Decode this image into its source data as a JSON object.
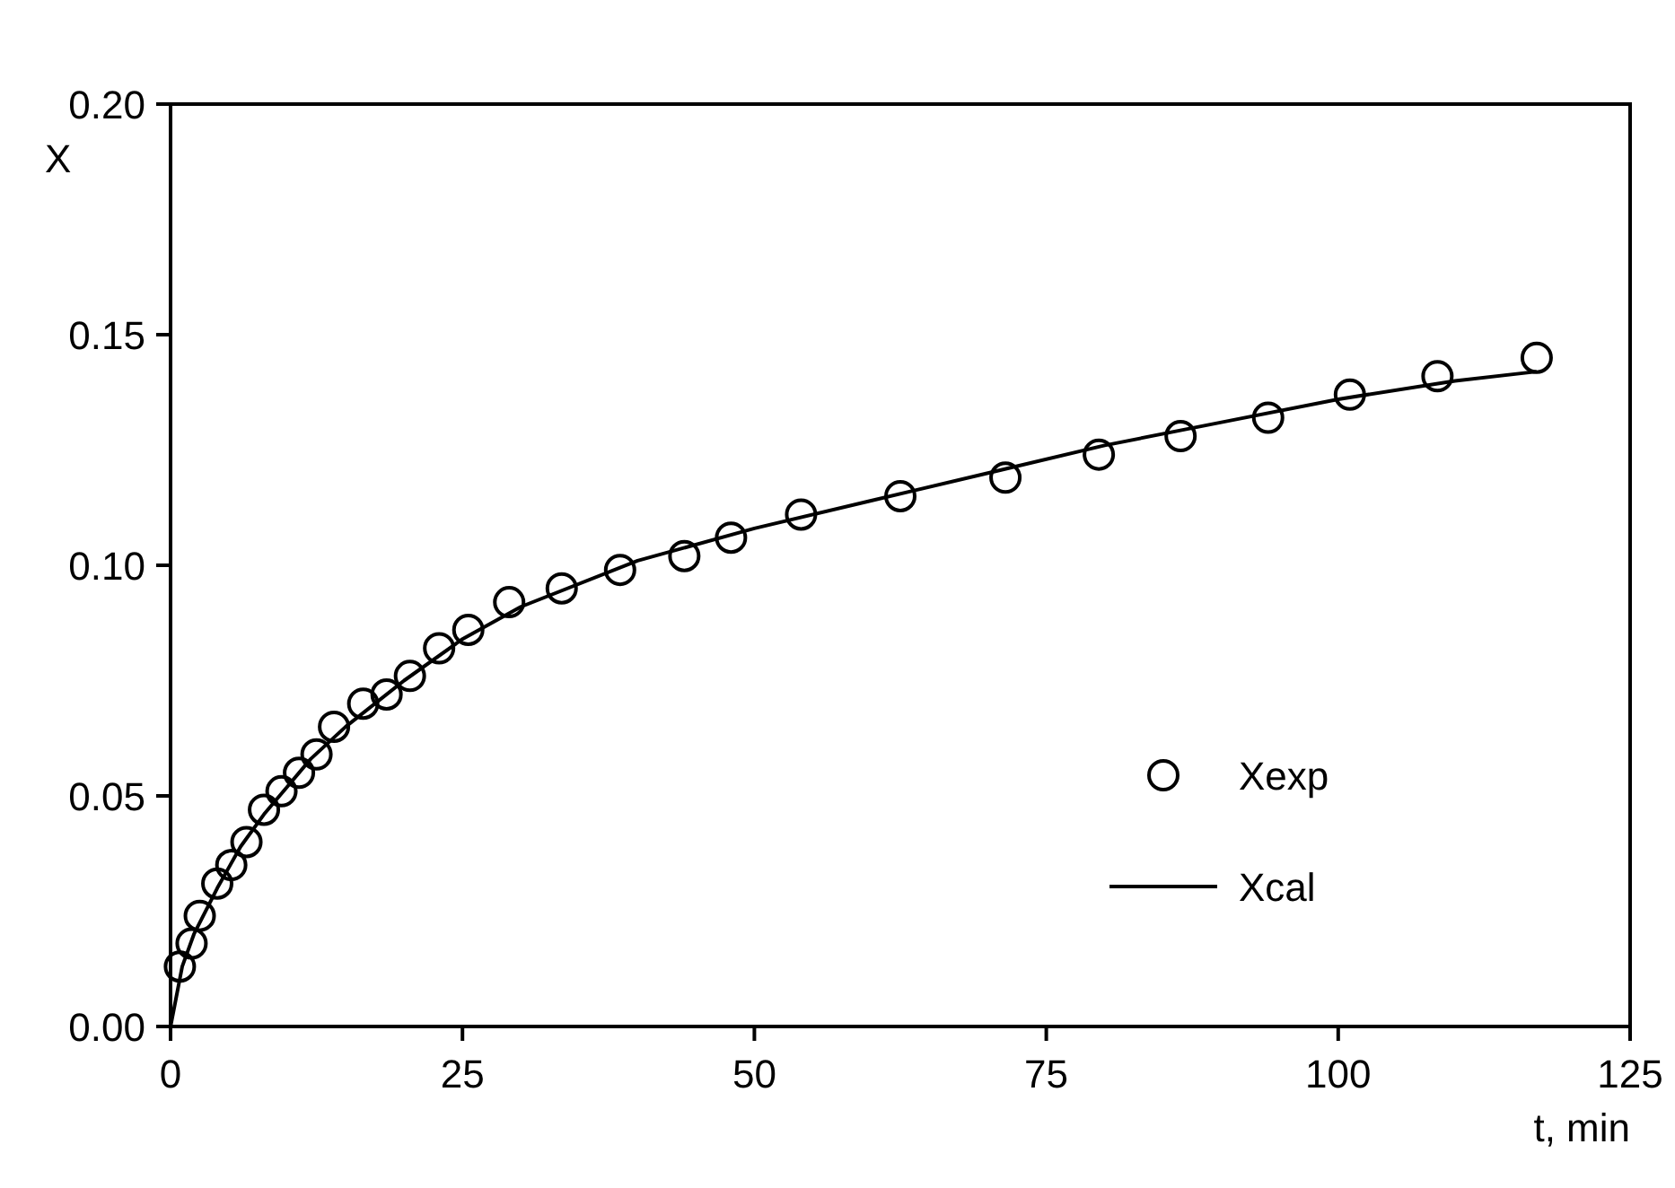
{
  "chart_data": {
    "type": "scatter",
    "xlabel": "t, min",
    "ylabel": "X",
    "xlim": [
      0,
      125
    ],
    "ylim": [
      0,
      0.2
    ],
    "xticks": [
      0,
      25,
      50,
      75,
      100,
      125
    ],
    "yticks": [
      {
        "value": 0,
        "label": "0.00"
      },
      {
        "value": 0.05,
        "label": "0.05"
      },
      {
        "value": 0.1,
        "label": "0.10"
      },
      {
        "value": 0.15,
        "label": "0.15"
      },
      {
        "value": 0.2,
        "label": "0.20"
      }
    ],
    "grid": false,
    "legend": "bottom right",
    "series": [
      {
        "name": "Xexp",
        "marker": "circle",
        "color": "#000000",
        "x": [
          0.8,
          1.8,
          2.5,
          4,
          5.2,
          6.5,
          8,
          9.5,
          11,
          12.5,
          14,
          16.5,
          18.5,
          20.5,
          23,
          25.5,
          29,
          33.5,
          38.5,
          44,
          48,
          54,
          62.5,
          71.5,
          79.5,
          86.5,
          94,
          101,
          108.5,
          117
        ],
        "values": [
          0.013,
          0.018,
          0.024,
          0.031,
          0.035,
          0.04,
          0.047,
          0.051,
          0.055,
          0.059,
          0.065,
          0.07,
          0.072,
          0.076,
          0.082,
          0.086,
          0.092,
          0.095,
          0.099,
          0.102,
          0.106,
          0.111,
          0.115,
          0.119,
          0.124,
          0.128,
          0.132,
          0.137,
          0.141,
          0.145
        ]
      },
      {
        "name": "Xcal",
        "type": "line",
        "marker": "none",
        "line_style": "solid",
        "color": "#000000",
        "x": [
          0,
          1,
          2,
          4,
          6,
          8,
          10,
          12,
          15,
          20,
          25,
          30,
          40,
          50,
          60,
          70,
          80,
          90,
          100,
          110,
          117
        ],
        "values": [
          0,
          0.013,
          0.02,
          0.03,
          0.039,
          0.046,
          0.052,
          0.058,
          0.065,
          0.075,
          0.084,
          0.091,
          0.101,
          0.108,
          0.114,
          0.12,
          0.126,
          0.131,
          0.136,
          0.14,
          0.142
        ]
      }
    ]
  }
}
